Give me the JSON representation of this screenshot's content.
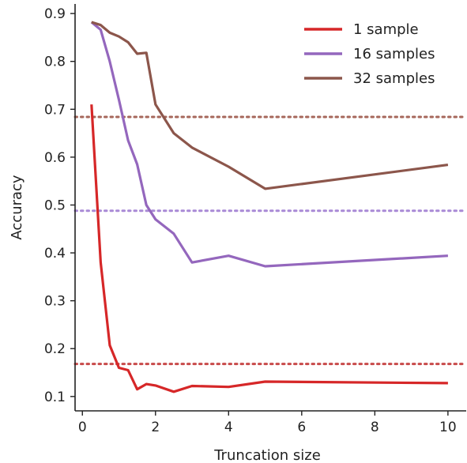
{
  "chart_data": {
    "type": "line",
    "title": "",
    "xlabel": "Truncation size",
    "ylabel": "Accuracy",
    "xlim": [
      -0.2,
      10.5
    ],
    "ylim": [
      0.07,
      0.92
    ],
    "xticks": [
      0,
      2,
      4,
      6,
      8,
      10
    ],
    "yticks": [
      0.1,
      0.2,
      0.3,
      0.4,
      0.5,
      0.6,
      0.7,
      0.8,
      0.9
    ],
    "grid": false,
    "legend_position": "top-right",
    "series": [
      {
        "name": "1 sample",
        "color": "#d62728",
        "x": [
          0.25,
          0.5,
          0.75,
          1.0,
          1.25,
          1.5,
          1.75,
          2.0,
          2.5,
          3.0,
          4.0,
          5.0,
          10.0
        ],
        "y": [
          0.71,
          0.38,
          0.207,
          0.16,
          0.155,
          0.115,
          0.126,
          0.123,
          0.11,
          0.122,
          0.12,
          0.131,
          0.128
        ]
      },
      {
        "name": "16 samples",
        "color": "#9467bd",
        "x": [
          0.25,
          0.5,
          0.75,
          1.0,
          1.25,
          1.5,
          1.75,
          2.0,
          2.5,
          3.0,
          4.0,
          5.0,
          10.0
        ],
        "y": [
          0.882,
          0.866,
          0.8,
          0.72,
          0.635,
          0.585,
          0.5,
          0.47,
          0.44,
          0.38,
          0.394,
          0.372,
          0.394
        ]
      },
      {
        "name": "32 samples",
        "color": "#8c564b",
        "x": [
          0.25,
          0.5,
          0.75,
          1.0,
          1.25,
          1.5,
          1.75,
          2.0,
          2.5,
          3.0,
          4.0,
          5.0,
          10.0
        ],
        "y": [
          0.882,
          0.876,
          0.86,
          0.852,
          0.84,
          0.816,
          0.818,
          0.71,
          0.65,
          0.62,
          0.58,
          0.534,
          0.584
        ]
      }
    ],
    "reference_lines": [
      {
        "color": "#c84a4a",
        "y": 0.168,
        "style": "dotted"
      },
      {
        "color": "#a98ad6",
        "y": 0.488,
        "style": "dotted"
      },
      {
        "color": "#a6675b",
        "y": 0.684,
        "style": "dotted"
      }
    ]
  }
}
